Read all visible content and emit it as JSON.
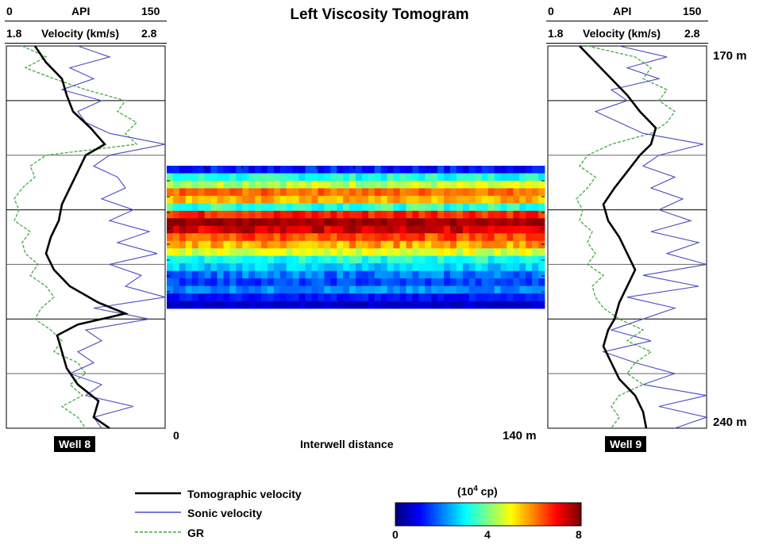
{
  "chart_data": {
    "type": "heatmap",
    "title": "Left Viscosity Tomogram",
    "xlabel": "Interwell distance",
    "x_tick_labels": [
      "0",
      "140 m"
    ],
    "depth_labels": [
      "170 m",
      "240 m"
    ],
    "colorbar": {
      "title": "(10",
      "title_sup": "4",
      "title_unit": " cp)",
      "tick_labels": [
        "0",
        "4",
        "8"
      ],
      "range": [
        0,
        8
      ],
      "colormap": "jet"
    },
    "wells": [
      {
        "name": "Well 8",
        "api_axis": {
          "min_label": "0",
          "label": "API",
          "max_label": "150"
        },
        "velocity_axis": {
          "min_label": "1.8",
          "label": "Velocity (km/s)",
          "max_label": "2.8"
        },
        "tomographic_velocity": [
          [
            170,
            1.98
          ],
          [
            173,
            2.05
          ],
          [
            176,
            2.15
          ],
          [
            179,
            2.18
          ],
          [
            182,
            2.22
          ],
          [
            185,
            2.33
          ],
          [
            188,
            2.42
          ],
          [
            190,
            2.3
          ],
          [
            193,
            2.25
          ],
          [
            196,
            2.2
          ],
          [
            199,
            2.15
          ],
          [
            202,
            2.13
          ],
          [
            205,
            2.08
          ],
          [
            208,
            2.05
          ],
          [
            211,
            2.1
          ],
          [
            214,
            2.2
          ],
          [
            217,
            2.38
          ],
          [
            219,
            2.55
          ],
          [
            221,
            2.25
          ],
          [
            223,
            2.12
          ],
          [
            226,
            2.15
          ],
          [
            229,
            2.18
          ],
          [
            232,
            2.25
          ],
          [
            235,
            2.38
          ],
          [
            238,
            2.35
          ],
          [
            240,
            2.45
          ]
        ],
        "sonic_velocity": [
          [
            170,
            2.25
          ],
          [
            172,
            2.45
          ],
          [
            174,
            2.2
          ],
          [
            176,
            2.35
          ],
          [
            178,
            2.15
          ],
          [
            180,
            2.4
          ],
          [
            182,
            2.25
          ],
          [
            184,
            2.3
          ],
          [
            186,
            2.45
          ],
          [
            188,
            2.8
          ],
          [
            190,
            2.45
          ],
          [
            192,
            2.35
          ],
          [
            194,
            2.5
          ],
          [
            196,
            2.55
          ],
          [
            198,
            2.4
          ],
          [
            200,
            2.6
          ],
          [
            202,
            2.45
          ],
          [
            204,
            2.7
          ],
          [
            206,
            2.5
          ],
          [
            208,
            2.75
          ],
          [
            210,
            2.45
          ],
          [
            212,
            2.65
          ],
          [
            214,
            2.55
          ],
          [
            216,
            2.8
          ],
          [
            218,
            2.35
          ],
          [
            220,
            2.7
          ],
          [
            222,
            2.3
          ],
          [
            224,
            2.4
          ],
          [
            226,
            2.25
          ],
          [
            228,
            2.35
          ],
          [
            230,
            2.2
          ],
          [
            232,
            2.4
          ],
          [
            234,
            2.3
          ],
          [
            236,
            2.6
          ],
          [
            238,
            2.35
          ],
          [
            240,
            2.4
          ]
        ],
        "gamma_ray": [
          [
            170,
            1.9
          ],
          [
            172,
            2.05
          ],
          [
            174,
            1.92
          ],
          [
            176,
            2.1
          ],
          [
            178,
            2.3
          ],
          [
            180,
            2.55
          ],
          [
            182,
            2.5
          ],
          [
            184,
            2.62
          ],
          [
            186,
            2.55
          ],
          [
            188,
            2.62
          ],
          [
            190,
            2.05
          ],
          [
            192,
            1.95
          ],
          [
            194,
            1.98
          ],
          [
            196,
            1.9
          ],
          [
            198,
            1.85
          ],
          [
            200,
            1.88
          ],
          [
            202,
            1.85
          ],
          [
            204,
            1.95
          ],
          [
            206,
            1.9
          ],
          [
            208,
            1.92
          ],
          [
            210,
            2.0
          ],
          [
            212,
            1.95
          ],
          [
            214,
            2.05
          ],
          [
            216,
            2.1
          ],
          [
            218,
            2.02
          ],
          [
            220,
            1.98
          ],
          [
            222,
            2.08
          ],
          [
            224,
            2.15
          ],
          [
            226,
            2.1
          ],
          [
            228,
            2.25
          ],
          [
            230,
            2.3
          ],
          [
            232,
            2.2
          ],
          [
            234,
            2.28
          ],
          [
            236,
            2.15
          ],
          [
            238,
            2.25
          ],
          [
            240,
            2.3
          ]
        ]
      },
      {
        "name": "Well 9",
        "api_axis": {
          "min_label": "0",
          "label": "API",
          "max_label": "150"
        },
        "velocity_axis": {
          "min_label": "1.8",
          "label": "Velocity (km/s)",
          "max_label": "2.8"
        },
        "tomographic_velocity": [
          [
            170,
            2.0
          ],
          [
            173,
            2.1
          ],
          [
            176,
            2.2
          ],
          [
            179,
            2.3
          ],
          [
            182,
            2.38
          ],
          [
            185,
            2.48
          ],
          [
            188,
            2.45
          ],
          [
            190,
            2.38
          ],
          [
            193,
            2.3
          ],
          [
            196,
            2.22
          ],
          [
            199,
            2.15
          ],
          [
            202,
            2.18
          ],
          [
            205,
            2.25
          ],
          [
            208,
            2.3
          ],
          [
            211,
            2.35
          ],
          [
            214,
            2.3
          ],
          [
            217,
            2.25
          ],
          [
            220,
            2.22
          ],
          [
            222,
            2.18
          ],
          [
            225,
            2.15
          ],
          [
            228,
            2.2
          ],
          [
            231,
            2.25
          ],
          [
            234,
            2.35
          ],
          [
            237,
            2.4
          ],
          [
            240,
            2.42
          ]
        ],
        "sonic_velocity": [
          [
            170,
            2.25
          ],
          [
            172,
            2.55
          ],
          [
            174,
            2.3
          ],
          [
            176,
            2.5
          ],
          [
            178,
            2.2
          ],
          [
            180,
            2.3
          ],
          [
            182,
            2.1
          ],
          [
            184,
            2.25
          ],
          [
            186,
            2.4
          ],
          [
            188,
            2.78
          ],
          [
            190,
            2.5
          ],
          [
            192,
            2.4
          ],
          [
            194,
            2.6
          ],
          [
            196,
            2.45
          ],
          [
            198,
            2.65
          ],
          [
            200,
            2.5
          ],
          [
            202,
            2.7
          ],
          [
            204,
            2.45
          ],
          [
            206,
            2.75
          ],
          [
            208,
            2.55
          ],
          [
            210,
            2.8
          ],
          [
            212,
            2.4
          ],
          [
            214,
            2.75
          ],
          [
            216,
            2.3
          ],
          [
            218,
            2.6
          ],
          [
            220,
            2.4
          ],
          [
            222,
            2.2
          ],
          [
            224,
            2.45
          ],
          [
            226,
            2.15
          ],
          [
            228,
            2.35
          ],
          [
            230,
            2.6
          ],
          [
            232,
            2.4
          ],
          [
            234,
            2.8
          ],
          [
            236,
            2.5
          ],
          [
            238,
            2.8
          ],
          [
            240,
            2.6
          ]
        ],
        "gamma_ray": [
          [
            170,
            2.05
          ],
          [
            172,
            2.35
          ],
          [
            174,
            2.45
          ],
          [
            176,
            2.4
          ],
          [
            178,
            2.55
          ],
          [
            180,
            2.5
          ],
          [
            182,
            2.6
          ],
          [
            184,
            2.55
          ],
          [
            186,
            2.45
          ],
          [
            188,
            2.2
          ],
          [
            190,
            2.05
          ],
          [
            192,
            2.0
          ],
          [
            194,
            2.1
          ],
          [
            196,
            2.05
          ],
          [
            198,
            1.98
          ],
          [
            200,
            2.02
          ],
          [
            202,
            2.0
          ],
          [
            204,
            2.08
          ],
          [
            206,
            2.05
          ],
          [
            208,
            2.1
          ],
          [
            210,
            2.05
          ],
          [
            212,
            2.15
          ],
          [
            214,
            2.08
          ],
          [
            216,
            2.1
          ],
          [
            218,
            2.15
          ],
          [
            220,
            2.25
          ],
          [
            222,
            2.4
          ],
          [
            224,
            2.3
          ],
          [
            226,
            2.45
          ],
          [
            228,
            2.35
          ],
          [
            230,
            2.3
          ],
          [
            232,
            2.4
          ],
          [
            234,
            2.25
          ],
          [
            236,
            2.2
          ],
          [
            238,
            2.25
          ],
          [
            240,
            2.2
          ]
        ]
      }
    ],
    "tomogram_rows": [
      {
        "base": 1.2,
        "jitter": 0.5
      },
      {
        "base": 3.2,
        "jitter": 0.5
      },
      {
        "base": 4.5,
        "jitter": 0.6
      },
      {
        "base": 6.2,
        "jitter": 0.4
      },
      {
        "base": 5.6,
        "jitter": 0.5
      },
      {
        "base": 3.4,
        "jitter": 0.6
      },
      {
        "base": 6.8,
        "jitter": 0.5
      },
      {
        "base": 7.8,
        "jitter": 0.3
      },
      {
        "base": 7.3,
        "jitter": 0.5
      },
      {
        "base": 6.4,
        "jitter": 0.5
      },
      {
        "base": 5.7,
        "jitter": 0.6
      },
      {
        "base": 4.7,
        "jitter": 0.5
      },
      {
        "base": 3.2,
        "jitter": 0.5
      },
      {
        "base": 2.6,
        "jitter": 0.4
      },
      {
        "base": 1.9,
        "jitter": 0.5
      },
      {
        "base": 1.5,
        "jitter": 0.4
      },
      {
        "base": 2.1,
        "jitter": 0.4
      },
      {
        "base": 1.1,
        "jitter": 0.3
      },
      {
        "base": 0.6,
        "jitter": 0.2
      }
    ],
    "legend": {
      "placement": "bottom-left",
      "items": [
        {
          "label": "Tomographic velocity",
          "color": "#000000",
          "style": "solid-thick"
        },
        {
          "label": "Sonic velocity",
          "color": "#4a4ac4",
          "style": "solid"
        },
        {
          "label": "GR",
          "color": "#44aa44",
          "style": "dashed"
        }
      ]
    }
  }
}
